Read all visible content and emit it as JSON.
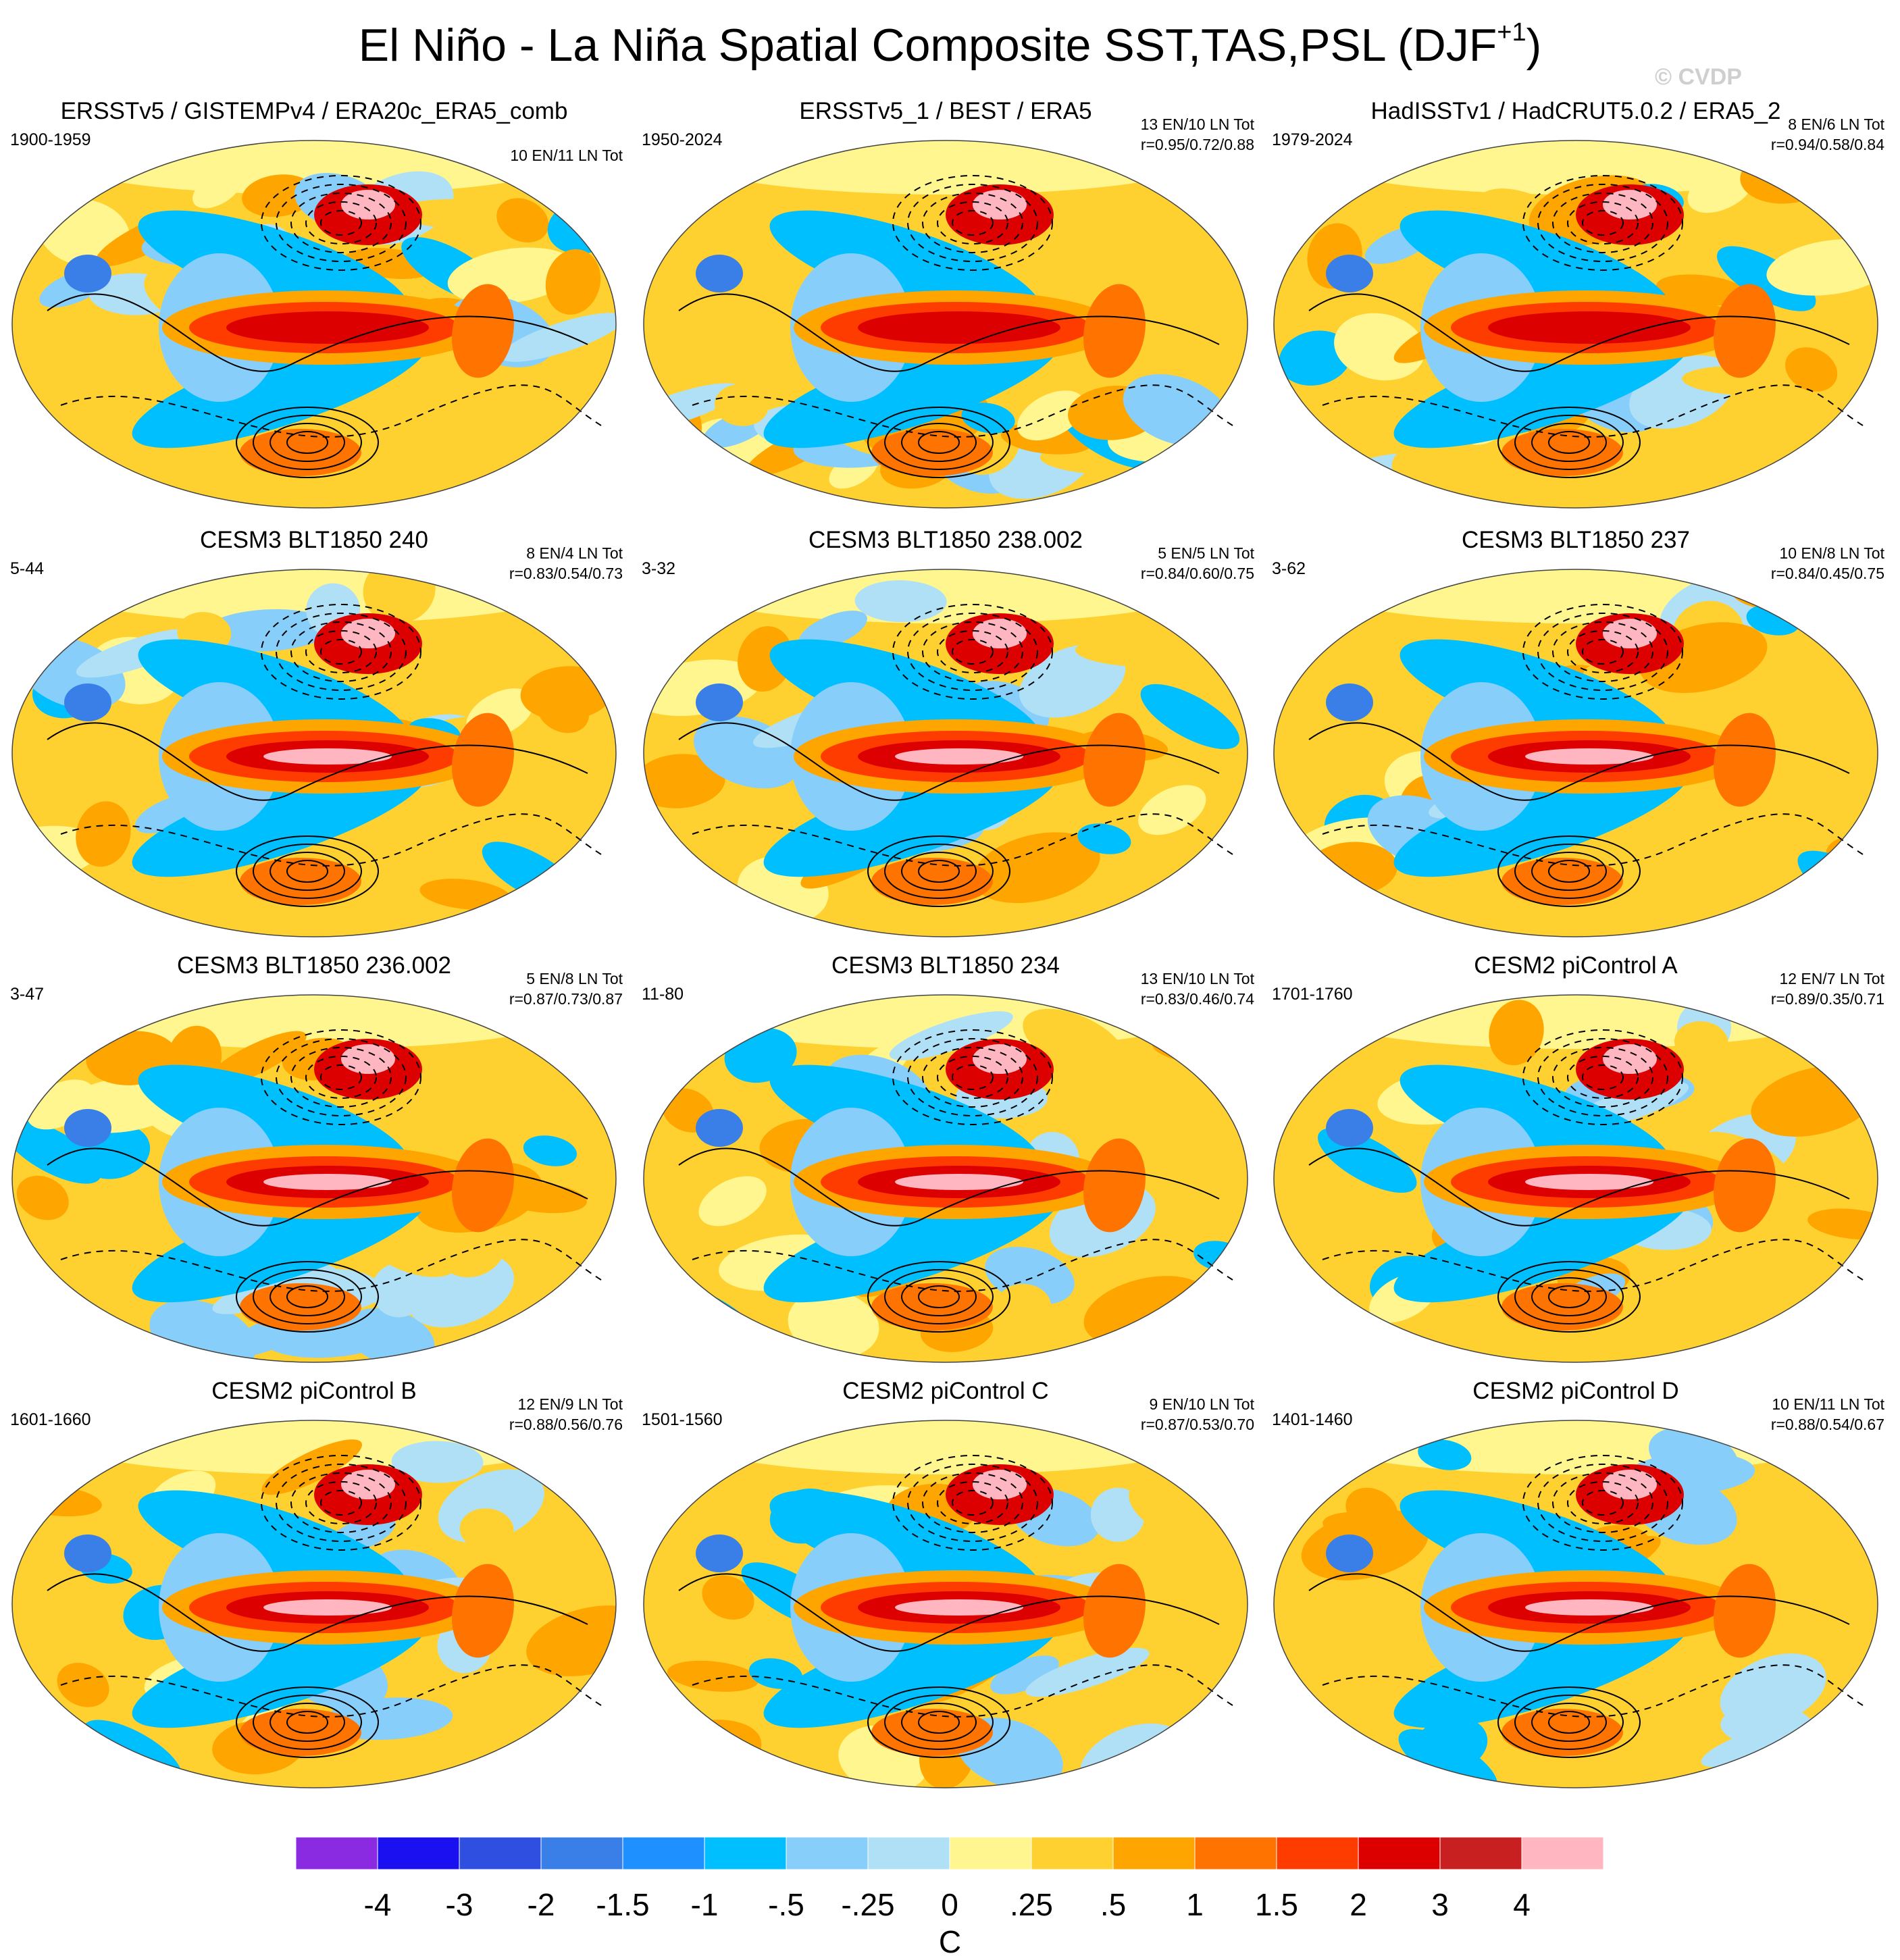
{
  "title": "El Niño - La Niña Spatial Composite SST,TAS,PSL (DJF",
  "title_superscript": "+1",
  "title_close": ")",
  "watermark": "© CVDP",
  "colorbar": {
    "unit": "C",
    "tick_labels": [
      "-4",
      "-3",
      "-2",
      "-1.5",
      "-1",
      "-.5",
      "-.25",
      "0",
      ".25",
      ".5",
      "1",
      "1.5",
      "2",
      "3",
      "4"
    ],
    "colors": [
      "#8A2BE2",
      "#1A10F0",
      "#2F4FE0",
      "#3A7FE8",
      "#1E90FF",
      "#00BFFF",
      "#87CEFA",
      "#B0E0F6",
      "#FFF68F",
      "#FFD130",
      "#FFA500",
      "#FF7300",
      "#FF3C00",
      "#DD0000",
      "#C82020",
      "#FFB6C1"
    ]
  },
  "chart_data": [
    {
      "type": "heatmap",
      "title": "ERSSTv5 / GISTEMPv4 / ERA20c_ERA5_comb",
      "years": "1900-1959",
      "counts": "10 EN/11 LN Tot",
      "correlation": ""
    },
    {
      "type": "heatmap",
      "title": "ERSSTv5_1 / BEST / ERA5",
      "years": "1950-2024",
      "counts": "13 EN/10 LN Tot",
      "correlation": "r=0.95/0.72/0.88"
    },
    {
      "type": "heatmap",
      "title": "HadISSTv1 / HadCRUT5.0.2 / ERA5_2",
      "years": "1979-2024",
      "counts": "8 EN/6 LN Tot",
      "correlation": "r=0.94/0.58/0.84"
    },
    {
      "type": "heatmap",
      "title": "CESM3 BLT1850 240",
      "years": "5-44",
      "counts": "8 EN/4 LN Tot",
      "correlation": "r=0.83/0.54/0.73"
    },
    {
      "type": "heatmap",
      "title": "CESM3 BLT1850 238.002",
      "years": "3-32",
      "counts": "5 EN/5 LN Tot",
      "correlation": "r=0.84/0.60/0.75"
    },
    {
      "type": "heatmap",
      "title": "CESM3 BLT1850 237",
      "years": "3-62",
      "counts": "10 EN/8 LN Tot",
      "correlation": "r=0.84/0.45/0.75"
    },
    {
      "type": "heatmap",
      "title": "CESM3 BLT1850 236.002",
      "years": "3-47",
      "counts": "5 EN/8 LN Tot",
      "correlation": "r=0.87/0.73/0.87"
    },
    {
      "type": "heatmap",
      "title": "CESM3 BLT1850 234",
      "years": "11-80",
      "counts": "13 EN/10 LN Tot",
      "correlation": "r=0.83/0.46/0.74"
    },
    {
      "type": "heatmap",
      "title": "CESM2 piControl A",
      "years": "1701-1760",
      "counts": "12 EN/7 LN Tot",
      "correlation": "r=0.89/0.35/0.71"
    },
    {
      "type": "heatmap",
      "title": "CESM2 piControl B",
      "years": "1601-1660",
      "counts": "12 EN/9 LN Tot",
      "correlation": "r=0.88/0.56/0.76"
    },
    {
      "type": "heatmap",
      "title": "CESM2 piControl C",
      "years": "1501-1560",
      "counts": "9 EN/10 LN Tot",
      "correlation": "r=0.87/0.53/0.70"
    },
    {
      "type": "heatmap",
      "title": "CESM2 piControl D",
      "years": "1401-1460",
      "counts": "10 EN/11 LN Tot",
      "correlation": "r=0.88/0.54/0.67"
    }
  ]
}
